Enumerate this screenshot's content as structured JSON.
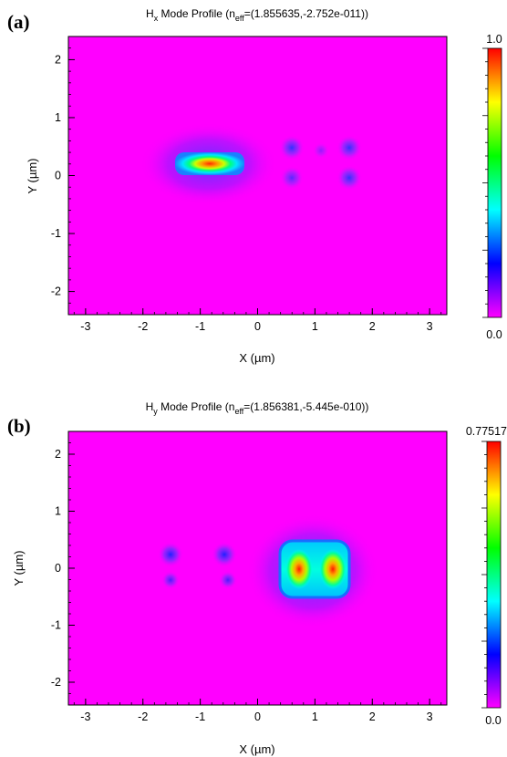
{
  "panels": [
    {
      "label": "(a)",
      "title": {
        "main": "H",
        "sub": "x",
        "mid": " Mode Profile (n",
        "eff": "eff",
        "end": "=(1.855635,-2.752e-011))"
      },
      "xlabel": "X (µm)",
      "ylabel": "Y (µm)",
      "colorbar": {
        "max_label": "1.0",
        "min_label": "0.0"
      }
    },
    {
      "label": "(b)",
      "title": {
        "main": "H",
        "sub": "y",
        "mid": " Mode Profile (n",
        "eff": "eff",
        "end": "=(1.856381,-5.445e-010))"
      },
      "xlabel": "X (µm)",
      "ylabel": "Y (µm)",
      "colorbar": {
        "max_label": "0.77517",
        "min_label": "0.0"
      }
    }
  ],
  "chart_data": [
    {
      "type": "heatmap",
      "title": "Hx Mode Profile (neff=(1.855635,-2.752e-011))",
      "xlabel": "X (µm)",
      "ylabel": "Y (µm)",
      "xlim": [
        -3.3,
        3.3
      ],
      "ylim": [
        -2.4,
        2.4
      ],
      "xticks": [
        -3,
        -2,
        -1,
        0,
        1,
        2,
        3
      ],
      "yticks": [
        -2,
        -1,
        0,
        1,
        2
      ],
      "value_range": [
        0.0,
        1.0
      ],
      "colormap": [
        "#ff00ff",
        "#0000ff",
        "#00ffff",
        "#00ff00",
        "#ffff00",
        "#ff0000"
      ],
      "features": [
        {
          "shape": "rect",
          "x": [
            -1.55,
            -0.35
          ],
          "y": [
            0.02,
            0.42
          ],
          "peak": 1.0,
          "peak_at": [
            -0.95,
            0.22
          ]
        },
        {
          "shape": "spot",
          "x": 0.55,
          "y": 0.5,
          "value": 0.12
        },
        {
          "shape": "spot",
          "x": 0.55,
          "y": 0.02,
          "value": 0.1
        },
        {
          "shape": "spot",
          "x": 1.55,
          "y": 0.5,
          "value": 0.12
        },
        {
          "shape": "spot",
          "x": 1.55,
          "y": 0.02,
          "value": 0.12
        },
        {
          "shape": "spot",
          "x": 1.0,
          "y": 0.45,
          "value": 0.05
        }
      ]
    },
    {
      "type": "heatmap",
      "title": "Hy Mode Profile (neff=(1.856381,-5.445e-010))",
      "xlabel": "X (µm)",
      "ylabel": "Y (µm)",
      "xlim": [
        -3.3,
        3.3
      ],
      "ylim": [
        -2.4,
        2.4
      ],
      "xticks": [
        -3,
        -2,
        -1,
        0,
        1,
        2,
        3
      ],
      "yticks": [
        -2,
        -1,
        0,
        1,
        2
      ],
      "value_range": [
        0.0,
        0.77517
      ],
      "colormap": [
        "#ff00ff",
        "#0000ff",
        "#00ffff",
        "#00ff00",
        "#ffff00",
        "#ff0000"
      ],
      "features": [
        {
          "shape": "rect",
          "x": [
            0.45,
            1.65
          ],
          "y": [
            -0.15,
            0.62
          ],
          "peak": 0.77517,
          "peak_at": [
            [
              0.75,
              0.25
            ],
            [
              1.35,
              0.25
            ]
          ]
        },
        {
          "shape": "spot",
          "x": -1.45,
          "y": 0.42,
          "value": 0.13
        },
        {
          "shape": "spot",
          "x": -1.45,
          "y": 0.02,
          "value": 0.1
        },
        {
          "shape": "spot",
          "x": -0.5,
          "y": 0.42,
          "value": 0.13
        },
        {
          "shape": "spot",
          "x": -0.5,
          "y": 0.02,
          "value": 0.1
        }
      ]
    }
  ]
}
